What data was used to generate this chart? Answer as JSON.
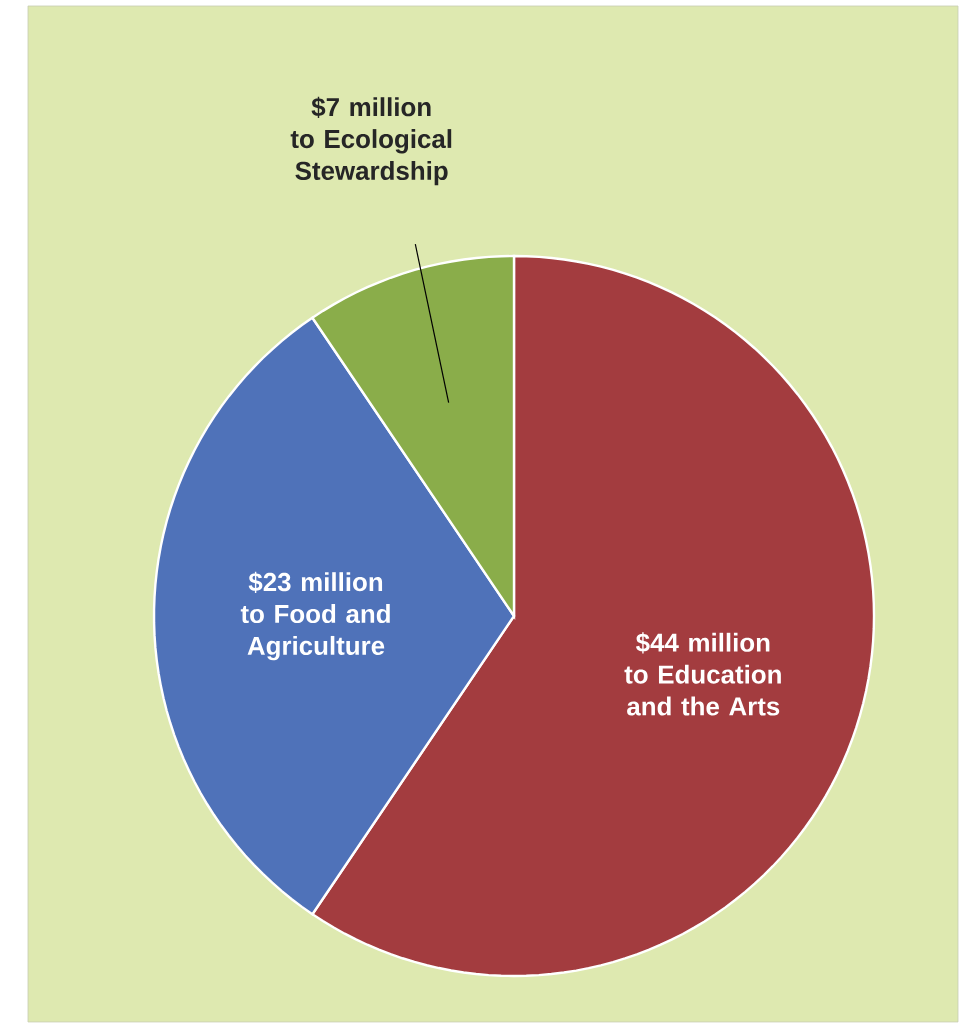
{
  "chart_data": {
    "type": "pie",
    "categories": [
      "to Education and the Arts",
      "to Food and Agriculture",
      "to Ecological Stewardship"
    ],
    "values": [
      44,
      23,
      7
    ],
    "value_labels": [
      "$44 million",
      "$23 million",
      "$7 million"
    ],
    "colors": [
      "#a33c3f",
      "#4f72b9",
      "#8aad4a"
    ]
  }
}
